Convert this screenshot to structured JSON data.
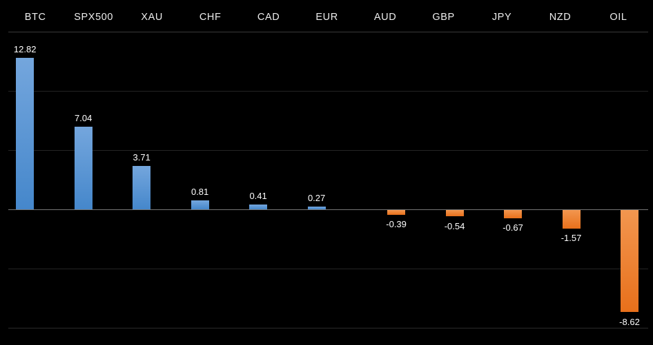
{
  "chart_data": {
    "type": "bar",
    "title": "",
    "xlabel": "",
    "ylabel": "",
    "categories": [
      "BTC",
      "SPX500",
      "XAU",
      "CHF",
      "CAD",
      "EUR",
      "AUD",
      "GBP",
      "JPY",
      "NZD",
      "OIL"
    ],
    "values": [
      12.82,
      7.04,
      3.71,
      0.81,
      0.41,
      0.27,
      -0.39,
      -0.54,
      -0.67,
      -1.57,
      -8.62
    ],
    "value_labels": [
      "12.82",
      "7.04",
      "3.71",
      "0.81",
      "0.41",
      "0.27",
      "-0.39",
      "-0.54",
      "-0.67",
      "-1.57",
      "-8.62"
    ],
    "ylim": [
      -11.5,
      15
    ],
    "grid": "on",
    "legend": "none",
    "gridlines": [
      {
        "value": 15,
        "color": "#3a3a3a"
      },
      {
        "value": 10,
        "color": "#242424"
      },
      {
        "value": 5,
        "color": "#242424"
      },
      {
        "value": 0,
        "color": "#767676"
      },
      {
        "value": -5,
        "color": "#242424"
      },
      {
        "value": -10,
        "color": "#2b2b2b"
      }
    ],
    "colors": {
      "background": "#000000",
      "positive_bar_top": "#74a6dd",
      "positive_bar_bottom": "#4587cb",
      "negative_bar_top": "#f2964f",
      "negative_bar_bottom": "#e8701b",
      "zero_line": "#767676",
      "gridline": "#242424",
      "category_label": "#ededed",
      "value_label": "#ffffff"
    }
  }
}
